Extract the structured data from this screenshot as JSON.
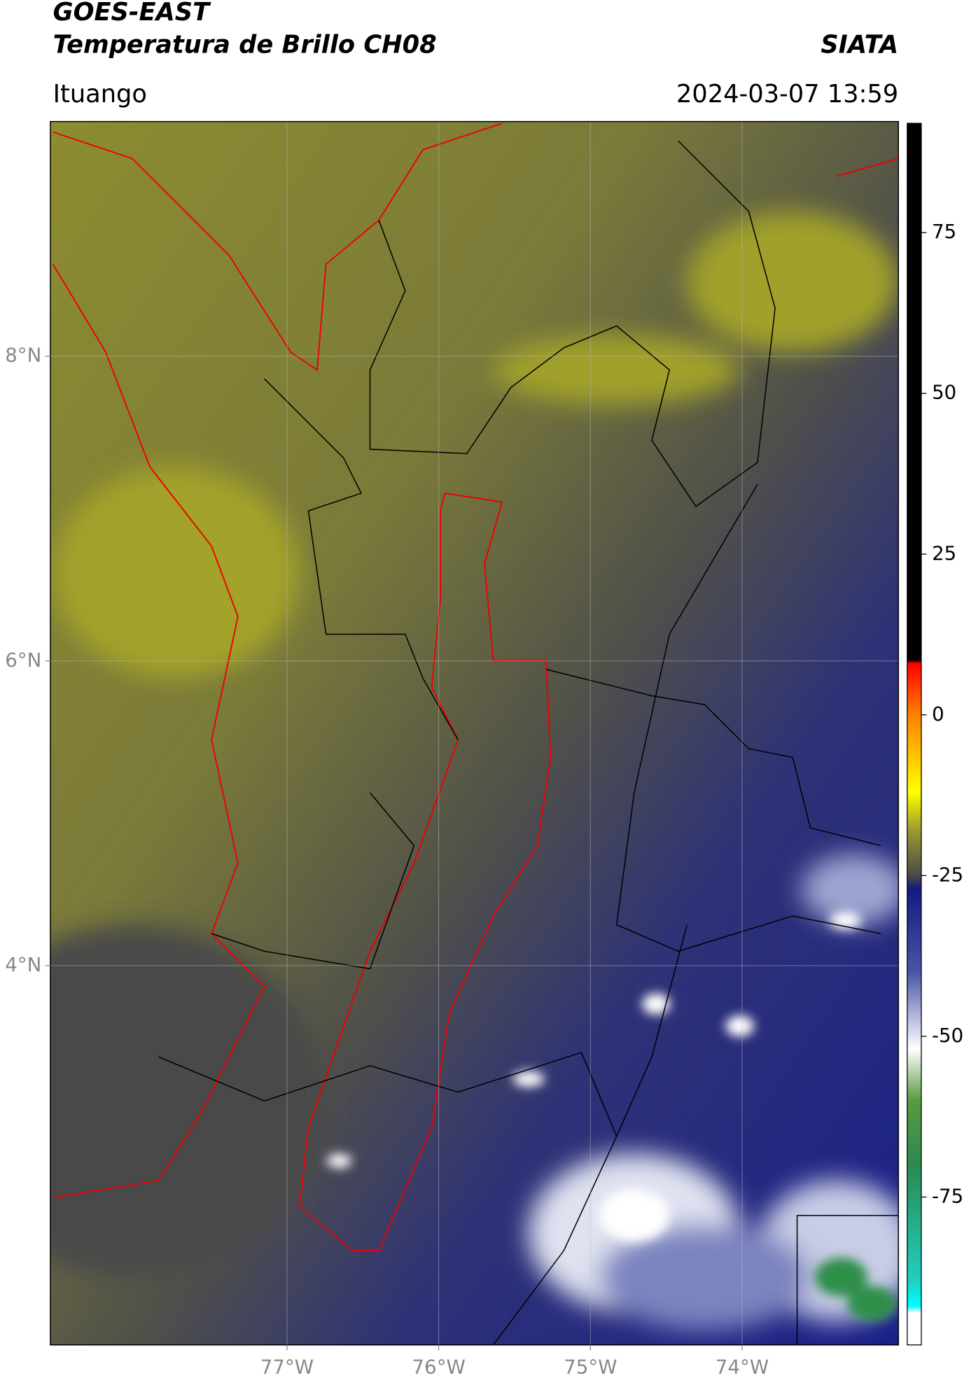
{
  "header": {
    "title": "GOES-EAST",
    "subtitle": "Temperatura de Brillo CH08",
    "source": "SIATA",
    "location": "Ituango",
    "datetime": "2024-03-07 13:59"
  },
  "map": {
    "lonlim": [
      -78.56,
      -72.97
    ],
    "latlim": [
      1.51,
      9.54
    ],
    "xticks": [
      {
        "value": -77,
        "label": "77°W"
      },
      {
        "value": -76,
        "label": "76°W"
      },
      {
        "value": -75,
        "label": "75°W"
      },
      {
        "value": -74,
        "label": "74°W"
      }
    ],
    "yticks": [
      {
        "value": 8,
        "label": "8°N"
      },
      {
        "value": 6,
        "label": "6°N"
      },
      {
        "value": 4,
        "label": "4°N"
      }
    ]
  },
  "colorbar": {
    "lim": [
      -98,
      92
    ],
    "ticks": [
      75,
      50,
      25,
      0,
      -25,
      -50,
      -75
    ],
    "stops": [
      {
        "value": 92,
        "color": "#000000"
      },
      {
        "value": 8.5,
        "color": "#000000"
      },
      {
        "value": 8,
        "color": "#ff0000"
      },
      {
        "value": 0,
        "color": "#ff8000"
      },
      {
        "value": -12,
        "color": "#ffff00"
      },
      {
        "value": -18,
        "color": "#9a9a30"
      },
      {
        "value": -25,
        "color": "#4a4a48"
      },
      {
        "value": -27,
        "color": "#141a80"
      },
      {
        "value": -40,
        "color": "#4a55a8"
      },
      {
        "value": -52,
        "color": "#ffffff"
      },
      {
        "value": -60,
        "color": "#5a9a40"
      },
      {
        "value": -70,
        "color": "#2a8a50"
      },
      {
        "value": -88,
        "color": "#20d0c0"
      },
      {
        "value": -92,
        "color": "#00ffff"
      },
      {
        "value": -93,
        "color": "#ffffff"
      },
      {
        "value": -98,
        "color": "#ffffff"
      }
    ]
  }
}
